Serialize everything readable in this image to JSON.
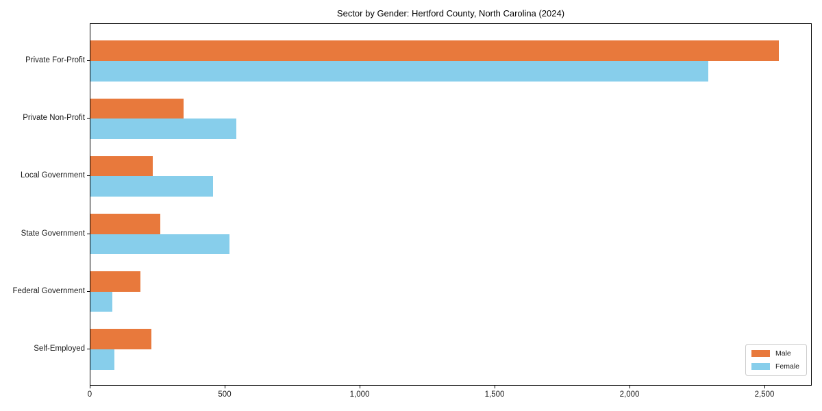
{
  "chart_data": {
    "type": "bar",
    "orientation": "horizontal",
    "title": "Sector by Gender: Hertford County, North Carolina (2024)",
    "categories": [
      "Private For-Profit",
      "Private Non-Profit",
      "Local Government",
      "State Government",
      "Federal Government",
      "Self-Employed"
    ],
    "series": [
      {
        "name": "Male",
        "color": "#E8793C",
        "values": [
          2550,
          345,
          230,
          260,
          185,
          225
        ]
      },
      {
        "name": "Female",
        "color": "#87CEEB",
        "values": [
          2290,
          540,
          455,
          515,
          80,
          90
        ]
      }
    ],
    "xlabel": "",
    "ylabel": "",
    "xlim": [
      0,
      2675
    ],
    "xticks": {
      "values": [
        0,
        500,
        1000,
        1500,
        2000,
        2500
      ],
      "labels": [
        "0",
        "500",
        "1,000",
        "1,500",
        "2,000",
        "2,500"
      ]
    },
    "grid": false,
    "legend": {
      "position": "lower right",
      "entries": [
        "Male",
        "Female"
      ]
    }
  }
}
